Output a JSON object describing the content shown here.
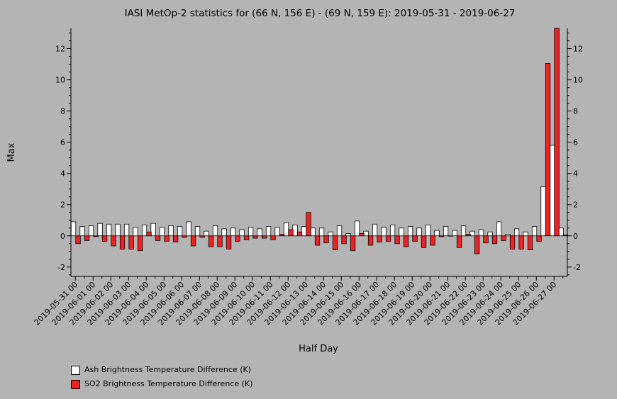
{
  "chart_data": {
    "type": "bar",
    "title": "IASI MetOp-2 statistics for (66 N, 156 E) - (69 N, 159 E): 2019-05-31 - 2019-06-27",
    "xlabel": "Half Day",
    "ylabel": "Max",
    "ylim": [
      -2.6,
      13.3
    ],
    "yticks": [
      -2,
      0,
      2,
      4,
      6,
      8,
      10,
      12
    ],
    "date_labels": [
      "2019-05-31 00",
      "2019-06-01 00",
      "2019-06-02 00",
      "2019-06-03 00",
      "2019-06-04 00",
      "2019-06-05 00",
      "2019-06-06 00",
      "2019-06-07 00",
      "2019-06-08 00",
      "2019-06-09 00",
      "2019-06-10 00",
      "2019-06-11 00",
      "2019-06-12 00",
      "2019-06-13 00",
      "2019-06-14 00",
      "2019-06-15 00",
      "2019-06-16 00",
      "2019-06-17 00",
      "2019-06-18 00",
      "2019-06-19 00",
      "2019-06-20 00",
      "2019-06-21 00",
      "2019-06-22 00",
      "2019-06-23 00",
      "2019-06-24 00",
      "2019-06-25 00",
      "2019-06-26 00",
      "2019-06-27 00"
    ],
    "legend_position": "bottom-left",
    "series": [
      {
        "name": "Ash Brightness Temperature Difference (K)",
        "color": "#ffffff",
        "values": [
          0.9,
          0.6,
          0.65,
          0.8,
          0.75,
          0.75,
          0.75,
          0.55,
          0.7,
          0.8,
          0.55,
          0.65,
          0.6,
          0.9,
          0.6,
          0.3,
          0.65,
          0.45,
          0.5,
          0.4,
          0.55,
          0.45,
          0.6,
          0.55,
          0.85,
          0.7,
          0.6,
          0.5,
          0.5,
          0.25,
          0.65,
          0.15,
          0.95,
          0.3,
          0.75,
          0.55,
          0.7,
          0.5,
          0.6,
          0.5,
          0.7,
          0.35,
          0.6,
          0.35,
          0.65,
          0.3,
          0.4,
          0.25,
          0.9,
          0.1,
          0.45,
          0.25,
          0.6,
          3.15,
          5.8,
          0.5
        ]
      },
      {
        "name": "SO2 Brightness Temperature Difference (K)",
        "color": "#ee2222",
        "values": [
          -0.5,
          -0.3,
          -0.05,
          -0.35,
          -0.65,
          -0.85,
          -0.85,
          -0.95,
          0.25,
          -0.3,
          -0.35,
          -0.4,
          -0.1,
          -0.65,
          -0.1,
          -0.7,
          -0.7,
          -0.85,
          -0.35,
          -0.25,
          -0.15,
          -0.15,
          -0.25,
          0.1,
          0.4,
          0.25,
          1.5,
          -0.6,
          -0.45,
          -0.9,
          -0.5,
          -0.95,
          0.15,
          -0.6,
          -0.4,
          -0.35,
          -0.5,
          -0.7,
          -0.35,
          -0.75,
          -0.6,
          -0.05,
          0.0,
          -0.75,
          0.1,
          -1.15,
          -0.45,
          -0.5,
          -0.3,
          -0.85,
          -0.85,
          -0.9,
          -0.35,
          11.05,
          13.3,
          0.05
        ]
      }
    ]
  }
}
